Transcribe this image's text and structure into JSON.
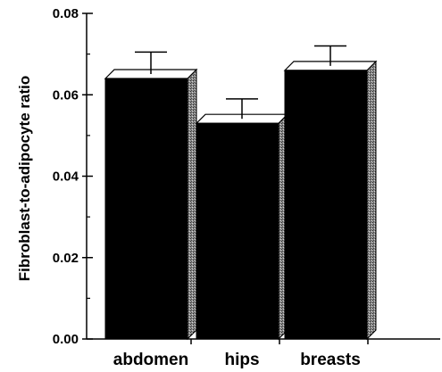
{
  "chart_data": {
    "type": "bar",
    "title": "",
    "xlabel": "",
    "ylabel": "Fibroblast-to-adipocyte ratio",
    "ylim": [
      0,
      0.08
    ],
    "yticks": [
      "0.00",
      "0.02",
      "0.04",
      "0.06",
      "0.08"
    ],
    "categories": [
      "abdomen",
      "hips",
      "breasts"
    ],
    "values": [
      0.064,
      0.053,
      0.066
    ],
    "error_upper": [
      0.0065,
      0.006,
      0.006
    ],
    "grid": false,
    "style": "3d-bar-with-upper-error-caps",
    "colors": {
      "bar": "#000000",
      "top": "#ffffff",
      "side": "#8c8c8c"
    }
  }
}
